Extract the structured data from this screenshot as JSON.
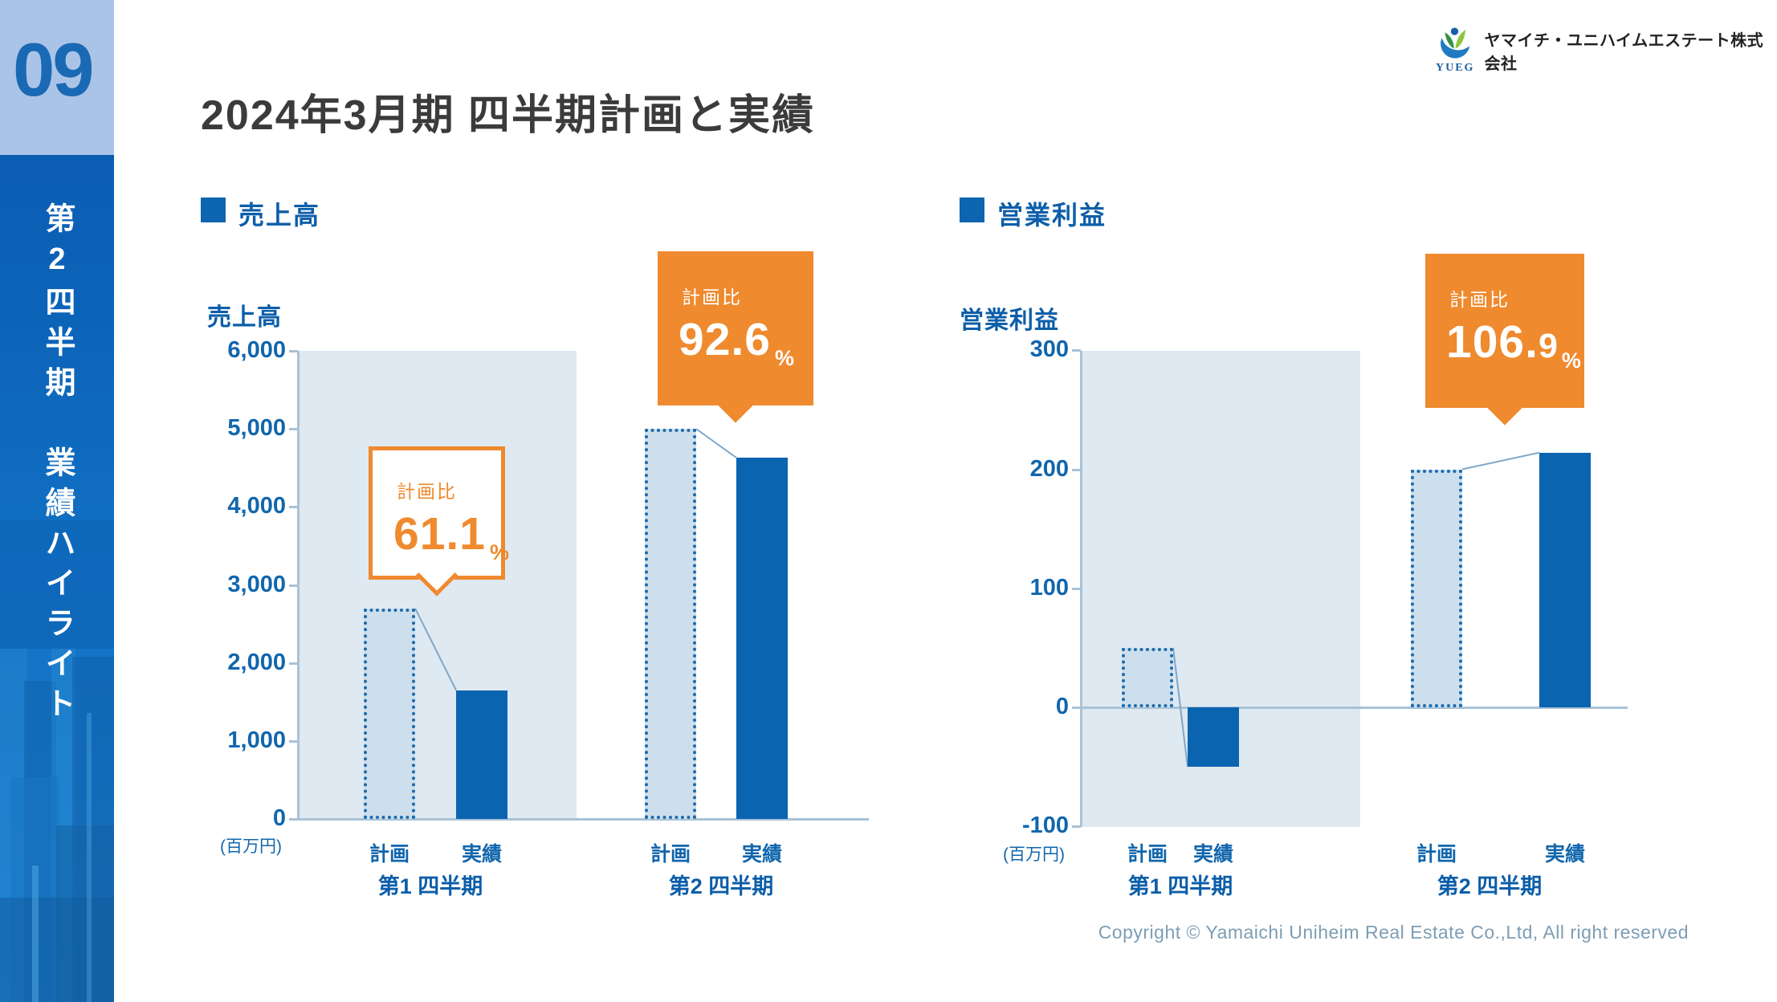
{
  "page": {
    "number": "09",
    "sidebar_title": "第2四半期　業績ハイライト",
    "title": "2024年3月期 四半期計画と実績"
  },
  "logo": {
    "acronym": "YUEG",
    "company": "ヤマイチ・ユニハイムエステート株式会社"
  },
  "footer": {
    "copyright": "Copyright © Yamaichi Uniheim Real Estate Co.,Ltd, All right reserved"
  },
  "colors": {
    "primary_blue": "#0b64b0",
    "text_blue": "#1166ad",
    "panel_light_blue": "#dfe9f2",
    "plan_bar_fill": "#cddfec",
    "accent_orange": "#ef8a2e",
    "title_gray": "#3b3b3b",
    "copyright_gray_blue": "#7d9db4",
    "sidebar_light": "#aac4e8"
  },
  "chart_data": [
    {
      "type": "bar",
      "title": "売上高",
      "axis_label": "売上高",
      "unit_label": "(百万円)",
      "ylim": [
        0,
        6000
      ],
      "grid": false,
      "legend_position": "none",
      "yticks": [
        {
          "v": 6000,
          "label": "6,000"
        },
        {
          "v": 5000,
          "label": "5,000"
        },
        {
          "v": 4000,
          "label": "4,000"
        },
        {
          "v": 3000,
          "label": "3,000"
        },
        {
          "v": 2000,
          "label": "2,000"
        },
        {
          "v": 1000,
          "label": "1,000"
        },
        {
          "v": 0,
          "label": "0"
        }
      ],
      "categories": [
        "第1 四半期",
        "第2 四半期"
      ],
      "series": [
        {
          "name": "計画",
          "style": "dotted",
          "values": [
            2700,
            5000
          ]
        },
        {
          "name": "実績",
          "style": "solid",
          "values": [
            1650,
            4630
          ]
        }
      ],
      "callouts": [
        {
          "group": 0,
          "label": "計画比",
          "value": "61.1",
          "value_small": "",
          "unit": "%",
          "variant": "outline"
        },
        {
          "group": 1,
          "label": "計画比",
          "value": "92.6",
          "value_small": "",
          "unit": "%",
          "variant": "solid"
        }
      ]
    },
    {
      "type": "bar",
      "title": "営業利益",
      "axis_label": "営業利益",
      "unit_label": "(百万円)",
      "ylim": [
        -100,
        300
      ],
      "grid": false,
      "legend_position": "none",
      "yticks": [
        {
          "v": 300,
          "label": "300"
        },
        {
          "v": 200,
          "label": "200"
        },
        {
          "v": 100,
          "label": "100"
        },
        {
          "v": 0,
          "label": "0"
        },
        {
          "v": -100,
          "label": "-100"
        }
      ],
      "categories": [
        "第1 四半期",
        "第2 四半期"
      ],
      "series": [
        {
          "name": "計画",
          "style": "dotted",
          "values": [
            50,
            200
          ]
        },
        {
          "name": "実績",
          "style": "solid",
          "values": [
            -50,
            214
          ]
        }
      ],
      "callouts": [
        {
          "group": 1,
          "label": "計画比",
          "value": "106.",
          "value_small": "9",
          "unit": "%",
          "variant": "solid"
        }
      ]
    }
  ]
}
